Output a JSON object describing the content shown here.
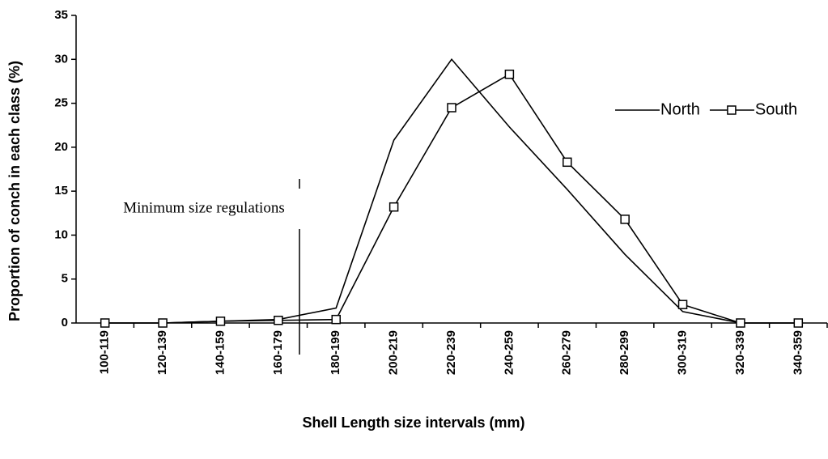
{
  "chart_data": {
    "type": "line",
    "x_label": "Shell Length size intervals (mm)",
    "y_label": "Proportion of conch in each class (%)",
    "annotation": "Minimum size regulations",
    "categories": [
      "100-119",
      "120-139",
      "140-159",
      "160-179",
      "180-199",
      "200-219",
      "220-239",
      "240-259",
      "260-279",
      "280-299",
      "300-319",
      "320-339",
      "340-359"
    ],
    "series": [
      {
        "name": "North",
        "color": "#000000",
        "marker": "none",
        "values": [
          0,
          0,
          0.2,
          0.4,
          1.7,
          20.8,
          30,
          22.3,
          15.2,
          7.8,
          1.3,
          0,
          0
        ]
      },
      {
        "name": "South",
        "color": "#000000",
        "marker": "square",
        "values": [
          0,
          0,
          0.2,
          0.3,
          0.4,
          13.2,
          24.5,
          28.3,
          18.3,
          11.8,
          2.1,
          0,
          0
        ]
      }
    ],
    "ylim": [
      0,
      35
    ],
    "yticks": [
      0,
      5,
      10,
      15,
      20,
      25,
      30,
      35
    ],
    "grid": false,
    "legend_position": "right"
  }
}
